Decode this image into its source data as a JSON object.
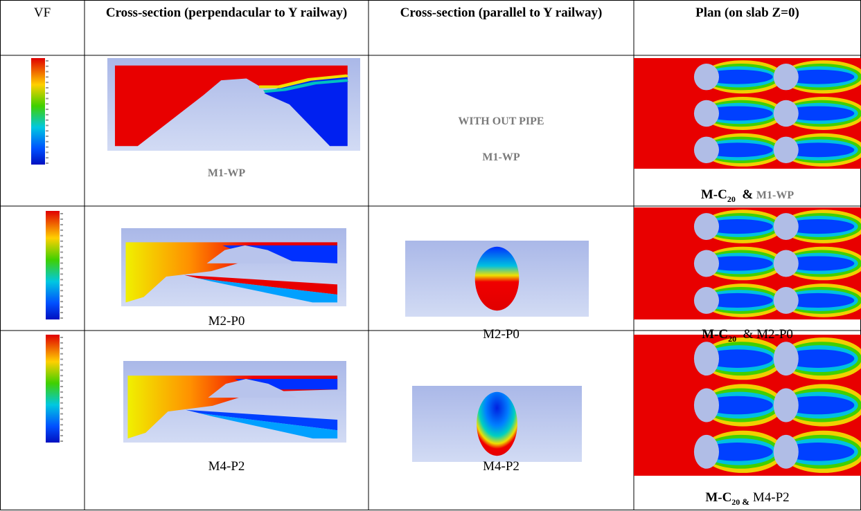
{
  "header": {
    "columns": [
      "VF",
      "Cross-section (perpendacular to Y railway)",
      "Cross-section (parallel to Y railway)",
      "Plan (on slab Z=0)"
    ]
  },
  "rows": [
    {
      "cross_perpendicular": "M1-WP",
      "cross_parallel": {
        "note": "WITH OUT PIPE",
        "label": "M1-WP"
      },
      "plan": {
        "prefix": "M-C",
        "subscript": "20",
        "joiner": "&",
        "label": "M1-WP"
      }
    },
    {
      "cross_perpendicular": "M2-P0",
      "cross_parallel": {
        "label": "M2-P0"
      },
      "plan": {
        "prefix": "M-C",
        "subscript": "20",
        "joiner": "&",
        "label": "M2-P0"
      }
    },
    {
      "cross_perpendicular": "M4-P2",
      "cross_parallel": {
        "label": "M4-P2"
      },
      "plan": {
        "prefix": "M-C",
        "subscript": "20",
        "joiner": "&",
        "label": "M4-P2"
      }
    }
  ]
}
